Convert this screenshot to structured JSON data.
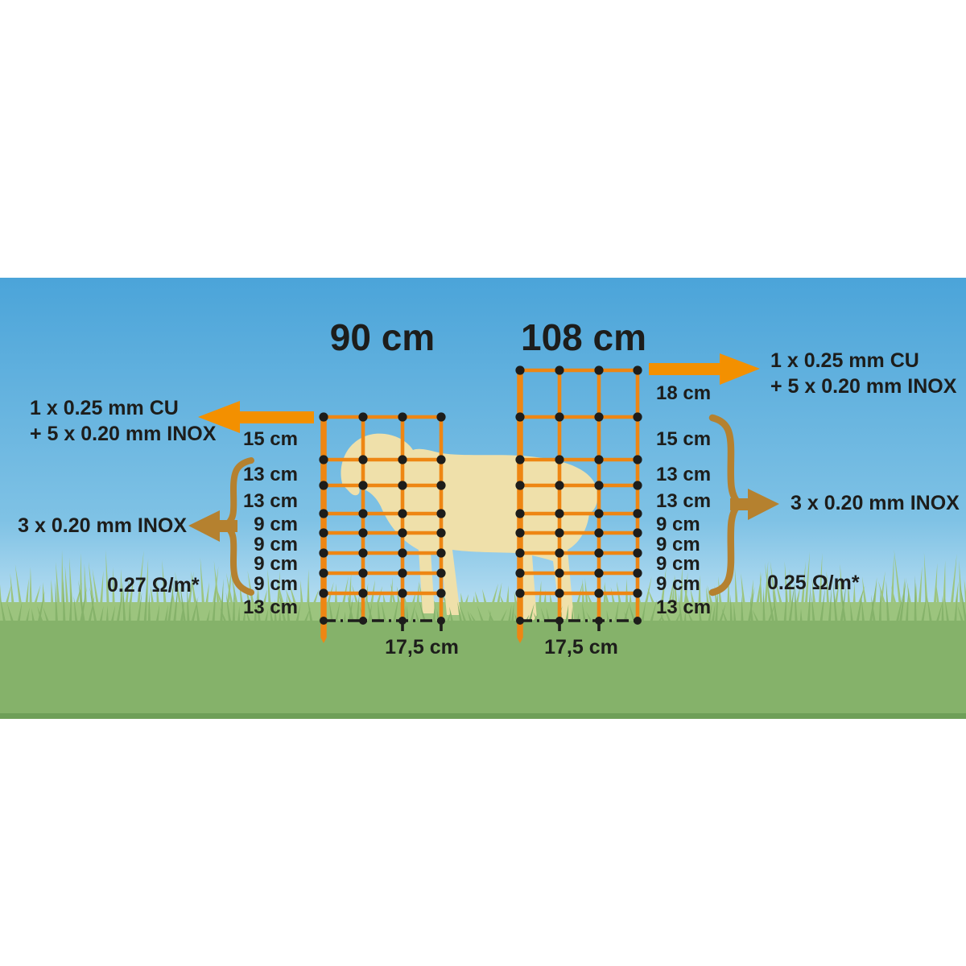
{
  "nets": [
    {
      "height_label": "90 cm",
      "spacings": [
        "15 cm",
        "13 cm",
        "13 cm",
        "9 cm",
        "9 cm",
        "9 cm",
        "9 cm",
        "13 cm"
      ],
      "mesh_width": "17,5 cm",
      "resistance": "0.27 Ω/m*",
      "top_conductor_line1": "1 x 0.25 mm CU",
      "top_conductor_line2": "+ 5 x 0.20 mm INOX",
      "middle_conductor": "3 x 0.20 mm INOX"
    },
    {
      "height_label": "108 cm",
      "spacings": [
        "18 cm",
        "15 cm",
        "13 cm",
        "13 cm",
        "9 cm",
        "9 cm",
        "9 cm",
        "9 cm",
        "13 cm"
      ],
      "mesh_width": "17,5 cm",
      "resistance": "0.25 Ω/m*",
      "top_conductor_line1": "1 x 0.25 mm CU",
      "top_conductor_line2": "+ 5 x 0.20 mm INOX",
      "middle_conductor": "3 x 0.20 mm INOX"
    }
  ],
  "colors": {
    "sky_top": "#4BA4D9",
    "sky_mid": "#7FC2E5",
    "sky_bottom": "#C6E5F4",
    "grass_light": "#9CC47E",
    "grass_main": "#85B26A",
    "grass_dark": "#6E9F58",
    "net_orange": "#EE8613",
    "arrow_orange": "#F39000",
    "brace_brown": "#B5812F",
    "sheep_beige": "#EFE0AA",
    "text": "#1D1D1B"
  }
}
